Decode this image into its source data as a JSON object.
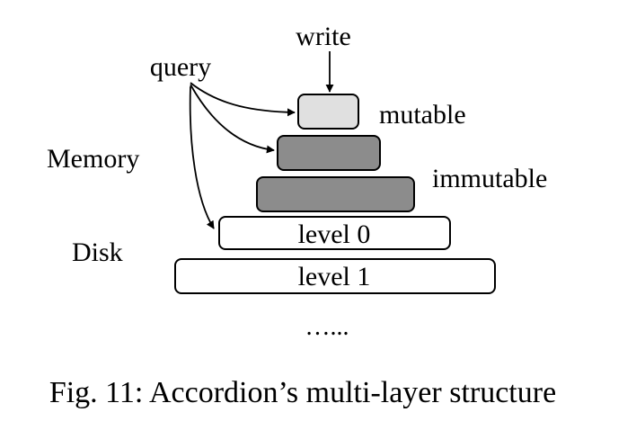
{
  "diagram": {
    "labels": {
      "write": "write",
      "query": "query",
      "memory": "Memory",
      "disk": "Disk",
      "mutable": "mutable",
      "immutable": "immutable",
      "ellipsis": "…..."
    },
    "layers": [
      {
        "name": "mutable-memtable",
        "text": "",
        "fill": "#e0e0e0"
      },
      {
        "name": "immutable-memtable-1",
        "text": "",
        "fill": "#8c8c8c"
      },
      {
        "name": "immutable-memtable-2",
        "text": "",
        "fill": "#8c8c8c"
      },
      {
        "name": "level-0",
        "text": "level 0",
        "fill": "#ffffff"
      },
      {
        "name": "level-1",
        "text": "level 1",
        "fill": "#ffffff"
      }
    ]
  },
  "caption": "Fig. 11: Accordion’s multi-layer structure"
}
